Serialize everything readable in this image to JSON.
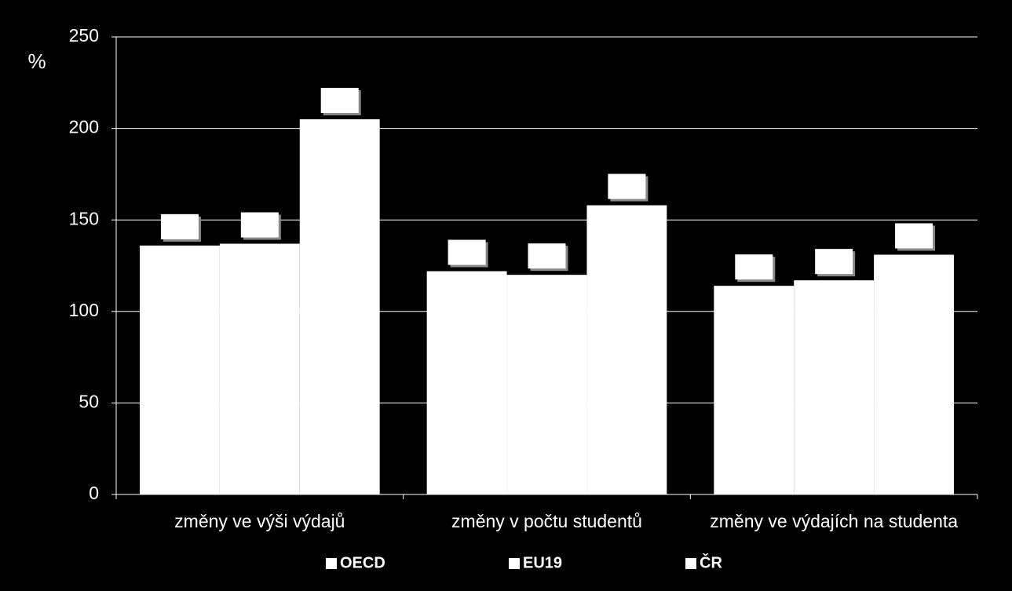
{
  "chart_data": {
    "type": "bar",
    "y_label": "%",
    "categories": [
      "změny ve výši výdajů",
      "změny v počtu studentů",
      "změny ve výdajích na studenta"
    ],
    "series": [
      {
        "name": "OECD",
        "color": "#ffffff",
        "values": [
          136,
          122,
          114
        ]
      },
      {
        "name": "EU19",
        "color": "#ffffff",
        "values": [
          137,
          120,
          117
        ]
      },
      {
        "name": "ČR",
        "color": "#ffffff",
        "values": [
          205,
          158,
          131
        ]
      }
    ],
    "ylim": [
      0,
      250
    ],
    "yticks": [
      0,
      50,
      100,
      150,
      200,
      250
    ],
    "grid": true,
    "legend": "bottom"
  }
}
